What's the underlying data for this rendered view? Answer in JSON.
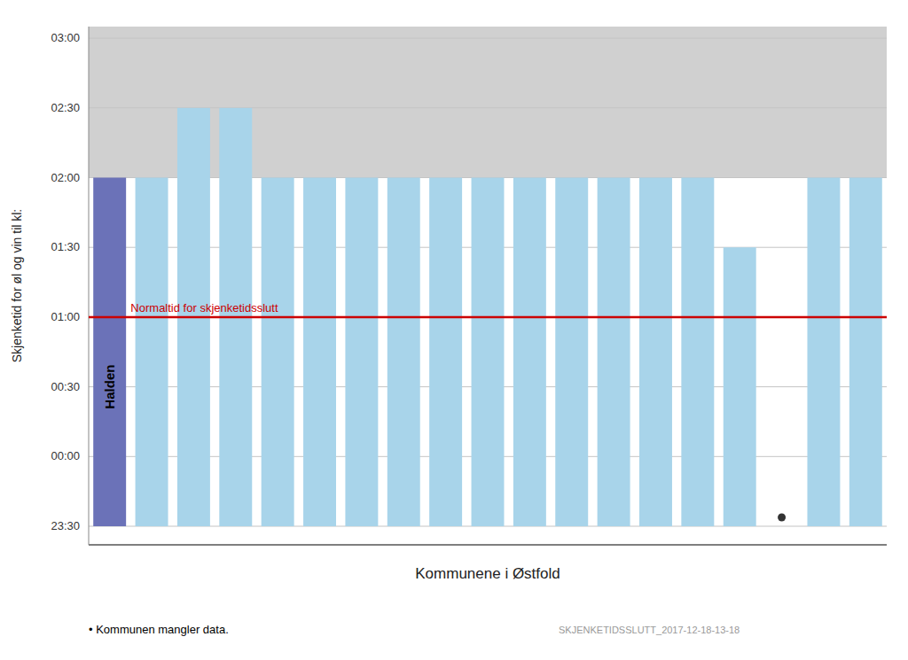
{
  "chart_data": {
    "type": "bar",
    "xlabel": "Kommunene i Østfold",
    "ylabel": "Skjenketid for øl og vin til kl:",
    "categories": [
      null,
      null,
      null,
      null,
      null,
      null,
      null,
      null,
      null,
      null,
      null,
      null,
      null,
      null,
      null,
      null,
      null,
      null,
      null
    ],
    "values": [
      120,
      120,
      150,
      150,
      120,
      120,
      120,
      120,
      120,
      120,
      120,
      120,
      120,
      120,
      120,
      90,
      null,
      120,
      120
    ],
    "baseline": -30,
    "colors": [
      "#6b72b8",
      "#a8d4ea",
      "#a8d4ea",
      "#a8d4ea",
      "#a8d4ea",
      "#a8d4ea",
      "#a8d4ea",
      "#a8d4ea",
      "#a8d4ea",
      "#a8d4ea",
      "#a8d4ea",
      "#a8d4ea",
      "#a8d4ea",
      "#a8d4ea",
      "#a8d4ea",
      "#a8d4ea",
      "#a8d4ea",
      "#a8d4ea",
      "#a8d4ea"
    ],
    "ylim": [
      -38,
      185
    ],
    "yticks": [
      {
        "value": -30,
        "label": "23:30"
      },
      {
        "value": 0,
        "label": "00:00"
      },
      {
        "value": 30,
        "label": "00:30"
      },
      {
        "value": 60,
        "label": "01:00"
      },
      {
        "value": 90,
        "label": "01:30"
      },
      {
        "value": 120,
        "label": "02:00"
      },
      {
        "value": 150,
        "label": "02:30"
      },
      {
        "value": 180,
        "label": "03:00"
      }
    ],
    "grid": true,
    "tick_labels": "y",
    "reference_line": {
      "value": 60,
      "label": "Normaltid for skjenketidsslutt",
      "color": "#cc0000"
    },
    "band": {
      "from": 120,
      "color": "#d0d0d0"
    },
    "annotations": [
      {
        "text": "Halden",
        "index": 0,
        "y": 30
      }
    ],
    "note": "• Kommunen mangler data.",
    "source": "SKJENKETIDSSLUTT_2017-12-18-13-18"
  }
}
